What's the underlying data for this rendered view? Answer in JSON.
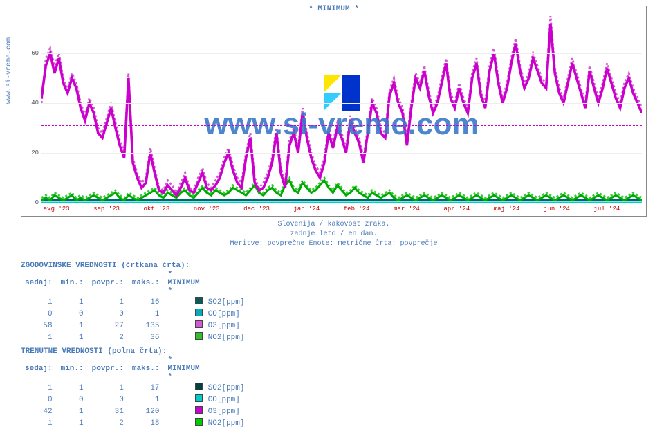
{
  "source_label": "www.si-vreme.com",
  "chart": {
    "title": "* MINIMUM *",
    "type": "line",
    "background_color": "#ffffff",
    "grid_color": "#eeeeee",
    "axis_color": "#aaaaaa",
    "ylim": [
      0,
      75
    ],
    "yticks": [
      0,
      20,
      40,
      60
    ],
    "xlabels": [
      "avg '23",
      "sep '23",
      "okt '23",
      "nov '23",
      "dec '23",
      "jan '24",
      "feb '24",
      "mar '24",
      "apr '24",
      "maj '24",
      "jun '24",
      "jul '24"
    ],
    "xtick_color": "#cc0000",
    "ytick_fontsize": 9,
    "xtick_fontsize": 9,
    "reference_lines": [
      {
        "value": 27,
        "color": "#cc66cc"
      },
      {
        "value": 31,
        "color": "#cc00cc"
      }
    ],
    "series": {
      "o3_hist": {
        "color": "#d458d4",
        "dash": "3,3",
        "width": 1,
        "values": [
          40,
          58,
          62,
          55,
          60,
          50,
          45,
          52,
          48,
          40,
          35,
          42,
          38,
          30,
          28,
          34,
          40,
          32,
          25,
          20,
          52,
          18,
          12,
          8,
          10,
          22,
          14,
          6,
          5,
          9,
          7,
          4,
          8,
          12,
          6,
          5,
          10,
          14,
          8,
          6,
          9,
          12,
          18,
          22,
          15,
          10,
          8,
          20,
          28,
          10,
          6,
          8,
          12,
          18,
          30,
          14,
          8,
          25,
          30,
          22,
          38,
          28,
          20,
          15,
          12,
          18,
          30,
          24,
          32,
          28,
          22,
          35,
          30,
          26,
          18,
          30,
          42,
          38,
          30,
          28,
          45,
          50,
          42,
          38,
          25,
          40,
          52,
          48,
          55,
          45,
          38,
          42,
          50,
          58,
          44,
          40,
          48,
          42,
          38,
          52,
          58,
          45,
          40,
          55,
          62,
          50,
          42,
          48,
          58,
          66,
          55,
          48,
          52,
          60,
          55,
          50,
          48,
          75,
          54,
          46,
          42,
          50,
          58,
          52,
          46,
          40,
          55,
          48,
          42,
          48,
          56,
          50,
          44,
          40,
          48,
          52,
          46,
          42,
          38
        ]
      },
      "o3_cur": {
        "color": "#cc00cc",
        "dash": "none",
        "width": 1.2,
        "values": [
          42,
          55,
          60,
          52,
          58,
          48,
          44,
          50,
          46,
          38,
          33,
          40,
          36,
          28,
          26,
          32,
          38,
          30,
          23,
          18,
          50,
          16,
          10,
          6,
          8,
          20,
          12,
          5,
          4,
          7,
          5,
          3,
          6,
          10,
          5,
          4,
          8,
          12,
          6,
          5,
          7,
          10,
          16,
          20,
          13,
          8,
          6,
          18,
          26,
          8,
          5,
          6,
          10,
          16,
          28,
          12,
          6,
          23,
          28,
          20,
          36,
          26,
          18,
          13,
          10,
          16,
          28,
          22,
          30,
          26,
          20,
          33,
          28,
          24,
          16,
          28,
          40,
          36,
          28,
          26,
          43,
          48,
          40,
          36,
          23,
          38,
          50,
          46,
          53,
          43,
          36,
          40,
          48,
          56,
          42,
          38,
          46,
          40,
          36,
          50,
          56,
          43,
          38,
          53,
          60,
          48,
          40,
          46,
          56,
          64,
          53,
          46,
          50,
          58,
          53,
          48,
          46,
          72,
          52,
          44,
          40,
          48,
          56,
          50,
          44,
          38,
          53,
          46,
          40,
          46,
          54,
          48,
          42,
          38,
          46,
          50,
          44,
          40,
          36
        ]
      },
      "no2_hist": {
        "color": "#33cc33",
        "dash": "3,3",
        "width": 1,
        "values": [
          2,
          3,
          2,
          4,
          3,
          2,
          3,
          4,
          2,
          3,
          2,
          3,
          4,
          3,
          2,
          3,
          4,
          5,
          3,
          2,
          4,
          3,
          2,
          3,
          4,
          5,
          6,
          4,
          3,
          5,
          4,
          3,
          5,
          6,
          4,
          3,
          5,
          7,
          5,
          4,
          6,
          5,
          4,
          5,
          7,
          6,
          5,
          4,
          6,
          8,
          5,
          4,
          6,
          7,
          5,
          4,
          8,
          10,
          6,
          5,
          9,
          7,
          5,
          6,
          8,
          10,
          7,
          5,
          8,
          6,
          4,
          5,
          7,
          5,
          4,
          3,
          5,
          4,
          3,
          4,
          5,
          3,
          2,
          3,
          4,
          3,
          2,
          3,
          4,
          3,
          2,
          3,
          4,
          3,
          2,
          3,
          4,
          3,
          2,
          3,
          4,
          3,
          2,
          3,
          4,
          3,
          2,
          3,
          4,
          3,
          2,
          3,
          4,
          3,
          2,
          3,
          4,
          3,
          2,
          3,
          4,
          3,
          2,
          3,
          4,
          3,
          2,
          3,
          4,
          3,
          2,
          3,
          4,
          3,
          2,
          3,
          4,
          3,
          2
        ]
      },
      "no2_cur": {
        "color": "#00aa00",
        "dash": "none",
        "width": 1,
        "values": [
          1,
          2,
          1,
          3,
          2,
          1,
          2,
          3,
          1,
          2,
          1,
          2,
          3,
          2,
          1,
          2,
          3,
          4,
          2,
          1,
          3,
          2,
          1,
          2,
          3,
          4,
          5,
          3,
          2,
          4,
          3,
          2,
          4,
          5,
          3,
          2,
          4,
          6,
          4,
          3,
          5,
          4,
          3,
          4,
          6,
          5,
          4,
          3,
          5,
          7,
          4,
          3,
          5,
          6,
          4,
          3,
          7,
          9,
          5,
          4,
          8,
          6,
          4,
          5,
          7,
          9,
          6,
          4,
          7,
          5,
          3,
          4,
          6,
          4,
          3,
          2,
          4,
          3,
          2,
          3,
          4,
          2,
          1,
          2,
          3,
          2,
          1,
          2,
          3,
          2,
          1,
          2,
          3,
          2,
          1,
          2,
          3,
          2,
          1,
          2,
          3,
          2,
          1,
          2,
          3,
          2,
          1,
          2,
          3,
          2,
          1,
          2,
          3,
          2,
          1,
          2,
          3,
          2,
          1,
          2,
          3,
          2,
          1,
          2,
          3,
          2,
          1,
          2,
          3,
          2,
          1,
          2,
          3,
          2,
          1,
          2,
          3,
          2,
          1
        ]
      },
      "so2": {
        "color": "#006666",
        "dash": "none",
        "width": 1,
        "values": [
          1,
          1,
          1,
          1,
          1,
          1,
          1,
          1,
          1,
          1,
          1,
          1,
          1,
          1,
          1,
          1,
          1,
          1,
          1,
          1,
          1,
          1,
          1,
          1,
          1,
          1,
          1,
          1,
          1,
          1,
          1,
          1,
          1,
          1,
          1,
          1,
          1,
          1,
          1,
          1,
          1,
          1,
          1,
          1,
          1,
          1,
          1,
          1,
          1,
          1,
          1,
          1,
          1,
          1,
          1,
          1,
          1,
          1,
          1,
          1,
          1,
          1,
          1,
          1,
          1,
          1,
          1,
          1,
          1,
          1,
          1,
          1,
          1,
          1,
          1,
          1,
          1,
          1,
          1,
          1,
          1,
          1,
          1,
          1,
          1,
          1,
          1,
          1,
          1,
          1,
          1,
          1,
          1,
          1,
          1,
          1,
          1,
          1,
          1,
          1,
          1,
          1,
          1,
          1,
          1,
          1,
          1,
          1,
          1,
          1,
          1,
          1,
          1,
          1,
          1,
          1,
          1,
          1,
          1,
          1,
          1,
          1,
          1,
          1,
          1,
          1,
          1,
          1,
          1,
          1,
          1,
          1,
          1,
          1,
          1,
          1,
          1,
          1,
          1
        ]
      },
      "co": {
        "color": "#00cccc",
        "dash": "none",
        "width": 1,
        "values": [
          0,
          0,
          0,
          0,
          0,
          0,
          0,
          0,
          0,
          0,
          0,
          0,
          0,
          0,
          0,
          0,
          0,
          0,
          0,
          0,
          0,
          0,
          0,
          0,
          0,
          0,
          0,
          0,
          0,
          0,
          0,
          0,
          0,
          0,
          0,
          0,
          0,
          0,
          0,
          0,
          0,
          0,
          0,
          0,
          0,
          0,
          0,
          0,
          0,
          0,
          0,
          0,
          0,
          0,
          0,
          0,
          0,
          0,
          0,
          0,
          0,
          0,
          0,
          0,
          0,
          0,
          0,
          0,
          0,
          0,
          0,
          0,
          0,
          0,
          0,
          0,
          0,
          0,
          0,
          0,
          0,
          0,
          0,
          0,
          0,
          0,
          0,
          0,
          0,
          0,
          0,
          0,
          0,
          0,
          0,
          0,
          0,
          0,
          0,
          0,
          0,
          0,
          0,
          0,
          0,
          0,
          0,
          0,
          0,
          0,
          0,
          0,
          0,
          0,
          0,
          0,
          0,
          0,
          0,
          0,
          0,
          0,
          0,
          0,
          0,
          0,
          0,
          0,
          0,
          0,
          0,
          0,
          0,
          0,
          0,
          0,
          0,
          0,
          0
        ]
      }
    },
    "watermark_text": "www.si-vreme.com",
    "watermark_logo_colors": [
      "#ffe600",
      "#0033cc",
      "#33ccff",
      "#0033cc"
    ]
  },
  "caption": {
    "line1": "Slovenija / kakovost zraka.",
    "line2": "zadnje leto / en dan.",
    "line3": "Meritve: povprečne  Enote: metrične  Črta: povprečje"
  },
  "tables": {
    "hist": {
      "title": "ZGODOVINSKE VREDNOSTI (črtkana črta):",
      "headers": [
        "sedaj:",
        "min.:",
        "povpr.:",
        "maks.:",
        "* MINIMUM *"
      ],
      "rows": [
        {
          "sedaj": "1",
          "min": "1",
          "povpr": "1",
          "maks": "16",
          "swatch": "#0a5a5a",
          "label": "SO2[ppm]"
        },
        {
          "sedaj": "0",
          "min": "0",
          "povpr": "0",
          "maks": "1",
          "swatch": "#0aa8b8",
          "label": "CO[ppm]"
        },
        {
          "sedaj": "58",
          "min": "1",
          "povpr": "27",
          "maks": "135",
          "swatch": "#d458d4",
          "label": "O3[ppm]"
        },
        {
          "sedaj": "1",
          "min": "1",
          "povpr": "2",
          "maks": "36",
          "swatch": "#2fbf2f",
          "label": "NO2[ppm]"
        }
      ]
    },
    "cur": {
      "title": "TRENUTNE VREDNOSTI (polna črta):",
      "headers": [
        "sedaj:",
        "min.:",
        "povpr.:",
        "maks.:",
        "* MINIMUM *"
      ],
      "rows": [
        {
          "sedaj": "1",
          "min": "1",
          "povpr": "1",
          "maks": "17",
          "swatch": "#044040",
          "label": "SO2[ppm]"
        },
        {
          "sedaj": "0",
          "min": "0",
          "povpr": "0",
          "maks": "1",
          "swatch": "#00cccc",
          "label": "CO[ppm]"
        },
        {
          "sedaj": "42",
          "min": "1",
          "povpr": "31",
          "maks": "120",
          "swatch": "#cc00cc",
          "label": "O3[ppm]"
        },
        {
          "sedaj": "1",
          "min": "1",
          "povpr": "2",
          "maks": "18",
          "swatch": "#00cc00",
          "label": "NO2[ppm]"
        }
      ]
    }
  }
}
